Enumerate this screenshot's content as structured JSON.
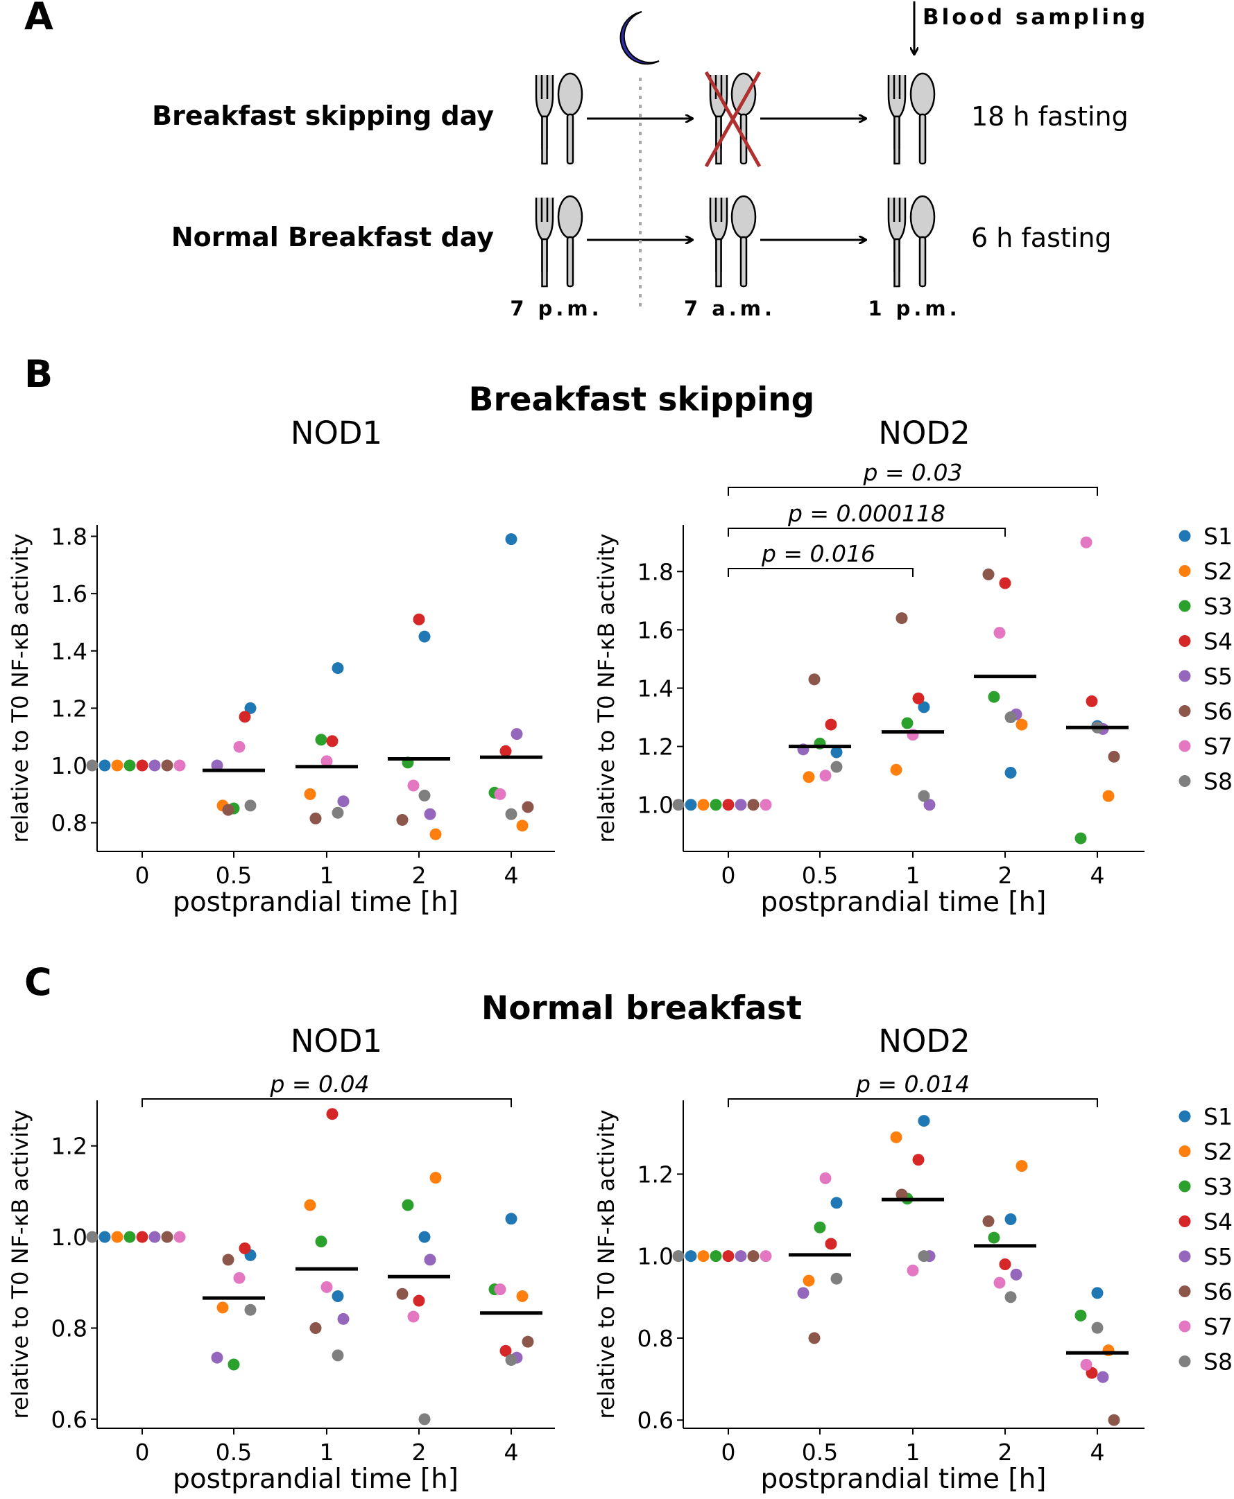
{
  "panel_a": {
    "label": "A",
    "row1_label": "Breakfast skipping day",
    "row2_label": "Normal Breakfast day",
    "blood_sampling": "Blood sampling",
    "fasting_long": "18 h fasting",
    "fasting_short": "6 h fasting",
    "times": [
      "7 p.m.",
      "7 a.m.",
      "1 p.m."
    ],
    "colors": {
      "moon": "#3030a8",
      "cross": "#b03030",
      "cutlery": "#d0d0d0"
    }
  },
  "panel_b": {
    "label": "B",
    "title": "Breakfast skipping"
  },
  "panel_c": {
    "label": "C",
    "title": "Normal breakfast"
  },
  "legend": {
    "subjects": [
      "S1",
      "S2",
      "S3",
      "S4",
      "S5",
      "S6",
      "S7",
      "S8"
    ],
    "colors": [
      "#1f77b4",
      "#ff7f0e",
      "#2ca02c",
      "#d62728",
      "#9467bd",
      "#8c564b",
      "#e377c2",
      "#7f7f7f"
    ]
  },
  "chart_data": [
    {
      "type": "scatter",
      "title": "NOD1",
      "panel": "B",
      "categories": [
        "0",
        "0.5",
        "1",
        "2",
        "4"
      ],
      "xlabel": "postprandial time [h]",
      "ylabel": "relative to T0 NF-κB activity",
      "ylim": [
        0.7,
        1.84
      ],
      "yticks": [
        0.8,
        1.0,
        1.2,
        1.4,
        1.6,
        1.8
      ],
      "ytick_labels": [
        "0.8",
        "1.0",
        "1.2",
        "1.4",
        "1.6",
        "1.8"
      ],
      "series": [
        {
          "name": "S1",
          "values": [
            1.0,
            1.2,
            1.34,
            1.45,
            1.79
          ]
        },
        {
          "name": "S2",
          "values": [
            1.0,
            0.86,
            0.9,
            0.76,
            0.79
          ]
        },
        {
          "name": "S3",
          "values": [
            1.0,
            0.85,
            1.09,
            1.01,
            0.905
          ]
        },
        {
          "name": "S4",
          "values": [
            1.0,
            1.17,
            1.085,
            1.51,
            1.05
          ]
        },
        {
          "name": "S5",
          "values": [
            1.0,
            1.0,
            0.875,
            0.83,
            1.11
          ]
        },
        {
          "name": "S6",
          "values": [
            1.0,
            0.845,
            0.815,
            0.81,
            0.855
          ]
        },
        {
          "name": "S7",
          "values": [
            1.0,
            1.065,
            1.015,
            0.93,
            0.9
          ]
        },
        {
          "name": "S8",
          "values": [
            1.0,
            0.86,
            0.835,
            0.895,
            0.83
          ]
        }
      ],
      "means": [
        1.0,
        0.983,
        0.996,
        1.023,
        1.029
      ],
      "brackets": []
    },
    {
      "type": "scatter",
      "title": "NOD2",
      "panel": "B",
      "categories": [
        "0",
        "0.5",
        "1",
        "2",
        "4"
      ],
      "xlabel": "postprandial time [h]",
      "ylabel": "relative to T0 NF-κB activity",
      "ylim": [
        0.84,
        1.96
      ],
      "yticks": [
        1.0,
        1.2,
        1.4,
        1.6,
        1.8
      ],
      "ytick_labels": [
        "1.0",
        "1.2",
        "1.4",
        "1.6",
        "1.8"
      ],
      "series": [
        {
          "name": "S1",
          "values": [
            1.0,
            1.18,
            1.335,
            1.11,
            1.27
          ]
        },
        {
          "name": "S2",
          "values": [
            1.0,
            1.095,
            1.12,
            1.275,
            1.03
          ]
        },
        {
          "name": "S3",
          "values": [
            1.0,
            1.21,
            1.28,
            1.37,
            0.885
          ]
        },
        {
          "name": "S4",
          "values": [
            1.0,
            1.275,
            1.365,
            1.76,
            1.355
          ]
        },
        {
          "name": "S5",
          "values": [
            1.0,
            1.19,
            1.0,
            1.31,
            1.26
          ]
        },
        {
          "name": "S6",
          "values": [
            1.0,
            1.43,
            1.64,
            1.79,
            1.165
          ]
        },
        {
          "name": "S7",
          "values": [
            1.0,
            1.1,
            1.24,
            1.59,
            1.9
          ]
        },
        {
          "name": "S8",
          "values": [
            1.0,
            1.13,
            1.03,
            1.3,
            1.265
          ]
        }
      ],
      "means": [
        1.0,
        1.2,
        1.25,
        1.44,
        1.265
      ],
      "brackets": [
        {
          "from": "0",
          "to": "1",
          "label": "p = 0.016"
        },
        {
          "from": "0",
          "to": "2",
          "label": "p = 0.000118"
        },
        {
          "from": "0",
          "to": "4",
          "label": "p = 0.03"
        }
      ]
    },
    {
      "type": "scatter",
      "title": "NOD1",
      "panel": "C",
      "categories": [
        "0",
        "0.5",
        "1",
        "2",
        "4"
      ],
      "xlabel": "postprandial time [h]",
      "ylabel": "relative to T0 NF-κB activity",
      "ylim": [
        0.58,
        1.3
      ],
      "yticks": [
        0.6,
        0.8,
        1.0,
        1.2
      ],
      "ytick_labels": [
        "0.6",
        "0.8",
        "1.0",
        "1.2"
      ],
      "series": [
        {
          "name": "S1",
          "values": [
            1.0,
            0.96,
            0.87,
            1.0,
            1.04
          ]
        },
        {
          "name": "S2",
          "values": [
            1.0,
            0.845,
            1.07,
            1.13,
            0.87
          ]
        },
        {
          "name": "S3",
          "values": [
            1.0,
            0.72,
            0.99,
            1.07,
            0.885
          ]
        },
        {
          "name": "S4",
          "values": [
            1.0,
            0.975,
            1.27,
            0.86,
            0.75
          ]
        },
        {
          "name": "S5",
          "values": [
            1.0,
            0.735,
            0.82,
            0.95,
            0.735
          ]
        },
        {
          "name": "S6",
          "values": [
            1.0,
            0.95,
            0.8,
            0.875,
            0.77
          ]
        },
        {
          "name": "S7",
          "values": [
            1.0,
            0.91,
            0.89,
            0.825,
            0.885
          ]
        },
        {
          "name": "S8",
          "values": [
            1.0,
            0.84,
            0.74,
            0.6,
            0.73
          ]
        }
      ],
      "means": [
        1.0,
        0.866,
        0.93,
        0.913,
        0.833
      ],
      "brackets": [
        {
          "from": "0",
          "to": "4",
          "label": "p = 0.04"
        }
      ]
    },
    {
      "type": "scatter",
      "title": "NOD2",
      "panel": "C",
      "categories": [
        "0",
        "0.5",
        "1",
        "2",
        "4"
      ],
      "xlabel": "postprandial time [h]",
      "ylabel": "relative to T0 NF-κB activity",
      "ylim": [
        0.58,
        1.38
      ],
      "yticks": [
        0.6,
        0.8,
        1.0,
        1.2
      ],
      "ytick_labels": [
        "0.6",
        "0.8",
        "1.0",
        "1.2"
      ],
      "series": [
        {
          "name": "S1",
          "values": [
            1.0,
            1.13,
            1.33,
            1.09,
            0.91
          ]
        },
        {
          "name": "S2",
          "values": [
            1.0,
            0.94,
            1.29,
            1.22,
            0.77
          ]
        },
        {
          "name": "S3",
          "values": [
            1.0,
            1.07,
            1.14,
            1.045,
            0.855
          ]
        },
        {
          "name": "S4",
          "values": [
            1.0,
            1.03,
            1.235,
            0.98,
            0.715
          ]
        },
        {
          "name": "S5",
          "values": [
            1.0,
            0.91,
            1.0,
            0.955,
            0.705
          ]
        },
        {
          "name": "S6",
          "values": [
            1.0,
            0.8,
            1.15,
            1.085,
            0.6
          ]
        },
        {
          "name": "S7",
          "values": [
            1.0,
            1.19,
            0.965,
            0.935,
            0.735
          ]
        },
        {
          "name": "S8",
          "values": [
            1.0,
            0.945,
            1.0,
            0.9,
            0.825
          ]
        }
      ],
      "means": [
        1.0,
        1.003,
        1.138,
        1.025,
        0.764
      ],
      "brackets": [
        {
          "from": "0",
          "to": "4",
          "label": "p = 0.014"
        }
      ]
    }
  ]
}
